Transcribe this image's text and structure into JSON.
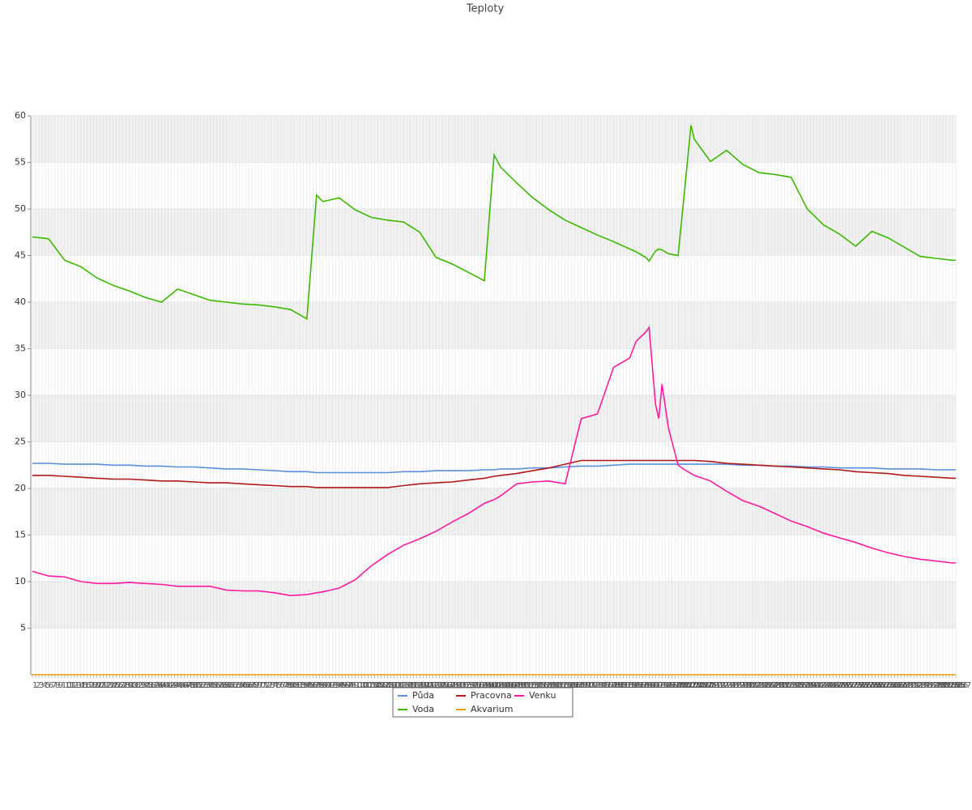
{
  "chart_data": {
    "type": "line",
    "title": "Teploty",
    "x": [
      1,
      6,
      11,
      16,
      21,
      26,
      31,
      36,
      41,
      46,
      51,
      56,
      61,
      66,
      71,
      76,
      81,
      86,
      89,
      91,
      96,
      101,
      106,
      111,
      116,
      121,
      126,
      131,
      136,
      141,
      144,
      146,
      151,
      156,
      161,
      166,
      171,
      176,
      181,
      186,
      188,
      191,
      192,
      194,
      195,
      196,
      198,
      201,
      203,
      205,
      206,
      211,
      216,
      221,
      226,
      231,
      236,
      241,
      246,
      251,
      256,
      261,
      266,
      271,
      276,
      281,
      286,
      287
    ],
    "series": [
      {
        "name": "Půda",
        "color": "#5b8fd8",
        "values": [
          22.7,
          22.7,
          22.6,
          22.6,
          22.6,
          22.5,
          22.5,
          22.4,
          22.4,
          22.3,
          22.3,
          22.2,
          22.1,
          22.1,
          22.0,
          21.9,
          21.8,
          21.8,
          21.7,
          21.7,
          21.7,
          21.7,
          21.7,
          21.7,
          21.8,
          21.8,
          21.9,
          21.9,
          21.9,
          22.0,
          22.0,
          22.1,
          22.1,
          22.2,
          22.2,
          22.3,
          22.4,
          22.4,
          22.5,
          22.6,
          22.6,
          22.6,
          22.6,
          22.6,
          22.6,
          22.6,
          22.6,
          22.6,
          22.6,
          22.6,
          22.6,
          22.6,
          22.6,
          22.5,
          22.5,
          22.4,
          22.4,
          22.3,
          22.3,
          22.2,
          22.2,
          22.2,
          22.1,
          22.1,
          22.1,
          22.0,
          22.0,
          22.0
        ]
      },
      {
        "name": "Voda",
        "color": "#3cb800",
        "values": [
          47,
          46.8,
          44.5,
          43.8,
          42.6,
          41.8,
          41.2,
          40.5,
          40.0,
          41.4,
          40.8,
          40.2,
          40.0,
          39.8,
          39.7,
          39.5,
          39.2,
          38.2,
          51.5,
          50.8,
          51.2,
          49.9,
          49.1,
          48.8,
          48.6,
          47.5,
          44.8,
          44.1,
          43.2,
          42.3,
          55.8,
          54.5,
          52.8,
          51.2,
          49.9,
          48.8,
          48,
          47.2,
          46.5,
          45.7,
          45.4,
          44.8,
          44.4,
          45.5,
          45.7,
          45.6,
          45.2,
          45.0,
          52,
          59,
          57.5,
          55.1,
          56.3,
          54.8,
          53.9,
          53.7,
          53.4,
          50,
          48.3,
          47.3,
          46,
          47.6,
          46.9,
          45.9,
          44.9,
          44.7,
          44.5,
          44.5
        ]
      },
      {
        "name": "Pracovna",
        "color": "#b01818",
        "values": [
          21.4,
          21.4,
          21.3,
          21.2,
          21.1,
          21.0,
          21.0,
          20.9,
          20.8,
          20.8,
          20.7,
          20.6,
          20.6,
          20.5,
          20.4,
          20.3,
          20.2,
          20.2,
          20.1,
          20.1,
          20.1,
          20.1,
          20.1,
          20.1,
          20.3,
          20.5,
          20.6,
          20.7,
          20.9,
          21.1,
          21.3,
          21.4,
          21.6,
          21.9,
          22.2,
          22.6,
          23.0,
          23.0,
          23.0,
          23.0,
          23.0,
          23.0,
          23.0,
          23.0,
          23.0,
          23.0,
          23.0,
          23.0,
          23.0,
          23.0,
          23.0,
          22.9,
          22.7,
          22.6,
          22.5,
          22.4,
          22.3,
          22.2,
          22.1,
          22.0,
          21.8,
          21.7,
          21.6,
          21.4,
          21.3,
          21.2,
          21.1,
          21.1
        ]
      },
      {
        "name": "Akvarium",
        "color": "#e8a000",
        "values": [
          0,
          0,
          0,
          0,
          0,
          0,
          0,
          0,
          0,
          0,
          0,
          0,
          0,
          0,
          0,
          0,
          0,
          0,
          0,
          0,
          0,
          0,
          0,
          0,
          0,
          0,
          0,
          0,
          0,
          0,
          0,
          0,
          0,
          0,
          0,
          0,
          0,
          0,
          0,
          0,
          0,
          0,
          0,
          0,
          0,
          0,
          0,
          0,
          0,
          0,
          0,
          0,
          0,
          0,
          0,
          0,
          0,
          0,
          0,
          0,
          0,
          0,
          0,
          0,
          0,
          0,
          0,
          0
        ]
      },
      {
        "name": "Venku",
        "color": "#ff1aa0",
        "values": [
          11.1,
          10.6,
          10.5,
          10.0,
          9.8,
          9.8,
          9.9,
          9.8,
          9.7,
          9.5,
          9.5,
          9.5,
          9.1,
          9.0,
          9.0,
          8.8,
          8.5,
          8.6,
          8.8,
          8.9,
          9.3,
          10.2,
          11.7,
          12.9,
          13.9,
          14.6,
          15.4,
          16.4,
          17.3,
          18.4,
          18.8,
          19.2,
          20.5,
          20.7,
          20.8,
          20.5,
          27.5,
          28,
          33,
          34,
          35.8,
          36.8,
          37.3,
          29,
          27.5,
          31.2,
          26.5,
          22.5,
          22,
          21.6,
          21.4,
          20.8,
          19.7,
          18.7,
          18.1,
          17.3,
          16.5,
          15.9,
          15.2,
          14.7,
          14.2,
          13.6,
          13.1,
          12.7,
          12.4,
          12.2,
          12.0,
          12.0
        ]
      }
    ],
    "xlim": [
      1,
      287
    ],
    "xticks": [
      1,
      2,
      3,
      4,
      5,
      6,
      7,
      8,
      9,
      10,
      11,
      12,
      13,
      14,
      15,
      16,
      17,
      18,
      19,
      20,
      21,
      22,
      23,
      24,
      25,
      26,
      27,
      28,
      29,
      30,
      31,
      32,
      33,
      34,
      35,
      36,
      37,
      38,
      39,
      40,
      41,
      42,
      43,
      44,
      45,
      46,
      47,
      48,
      49,
      50,
      51,
      52,
      53,
      54,
      55,
      56,
      57,
      58,
      59,
      60,
      61,
      62,
      63,
      64,
      65,
      66,
      67,
      68,
      69,
      70,
      71,
      72,
      73,
      74,
      75,
      76,
      77,
      78,
      79,
      80,
      81,
      82,
      83,
      84,
      85,
      86,
      87,
      88,
      89,
      90,
      91,
      92,
      93,
      94,
      95,
      96,
      97,
      98,
      99,
      100,
      101,
      102,
      103,
      104,
      105,
      106,
      107,
      108,
      109,
      110,
      111,
      112,
      113,
      114,
      115,
      116,
      117,
      118,
      119,
      120,
      121,
      122,
      123,
      124,
      125,
      126,
      127,
      128,
      129,
      130,
      131,
      132,
      133,
      134,
      135,
      136,
      137,
      138,
      139,
      140,
      141,
      142,
      143,
      144,
      145,
      146,
      147,
      148,
      149,
      150,
      151,
      152,
      153,
      154,
      155,
      156,
      157,
      158,
      159,
      160,
      161,
      162,
      163,
      164,
      165,
      166,
      167,
      168,
      169,
      170,
      171,
      172,
      173,
      174,
      175,
      176,
      177,
      178,
      179,
      180,
      181,
      182,
      183,
      184,
      185,
      186,
      187,
      188,
      189,
      190,
      191,
      192,
      193,
      194,
      195,
      196,
      197,
      198,
      199,
      200,
      201,
      202,
      203,
      204,
      205,
      206,
      207,
      208,
      209,
      210,
      211,
      212,
      213,
      214,
      215,
      216,
      217,
      218,
      219,
      220,
      221,
      222,
      223,
      224,
      225,
      226,
      227,
      228,
      229,
      230,
      231,
      232,
      233,
      234,
      235,
      236,
      237,
      238,
      239,
      240,
      241,
      242,
      243,
      244,
      245,
      246,
      247,
      248,
      249,
      250,
      251,
      252,
      253,
      254,
      255,
      256,
      257,
      258,
      259,
      260,
      261,
      262,
      263,
      264,
      265,
      266,
      267,
      268,
      269,
      270,
      271,
      272,
      273,
      274,
      275,
      276,
      277,
      278,
      279,
      280,
      281,
      282,
      283,
      284,
      285,
      286,
      287
    ],
    "ylim": [
      0,
      60
    ],
    "yticks": [
      5,
      10,
      15,
      20,
      25,
      30,
      35,
      40,
      45,
      50,
      55,
      60
    ],
    "grid": true,
    "legend": "bottom"
  }
}
